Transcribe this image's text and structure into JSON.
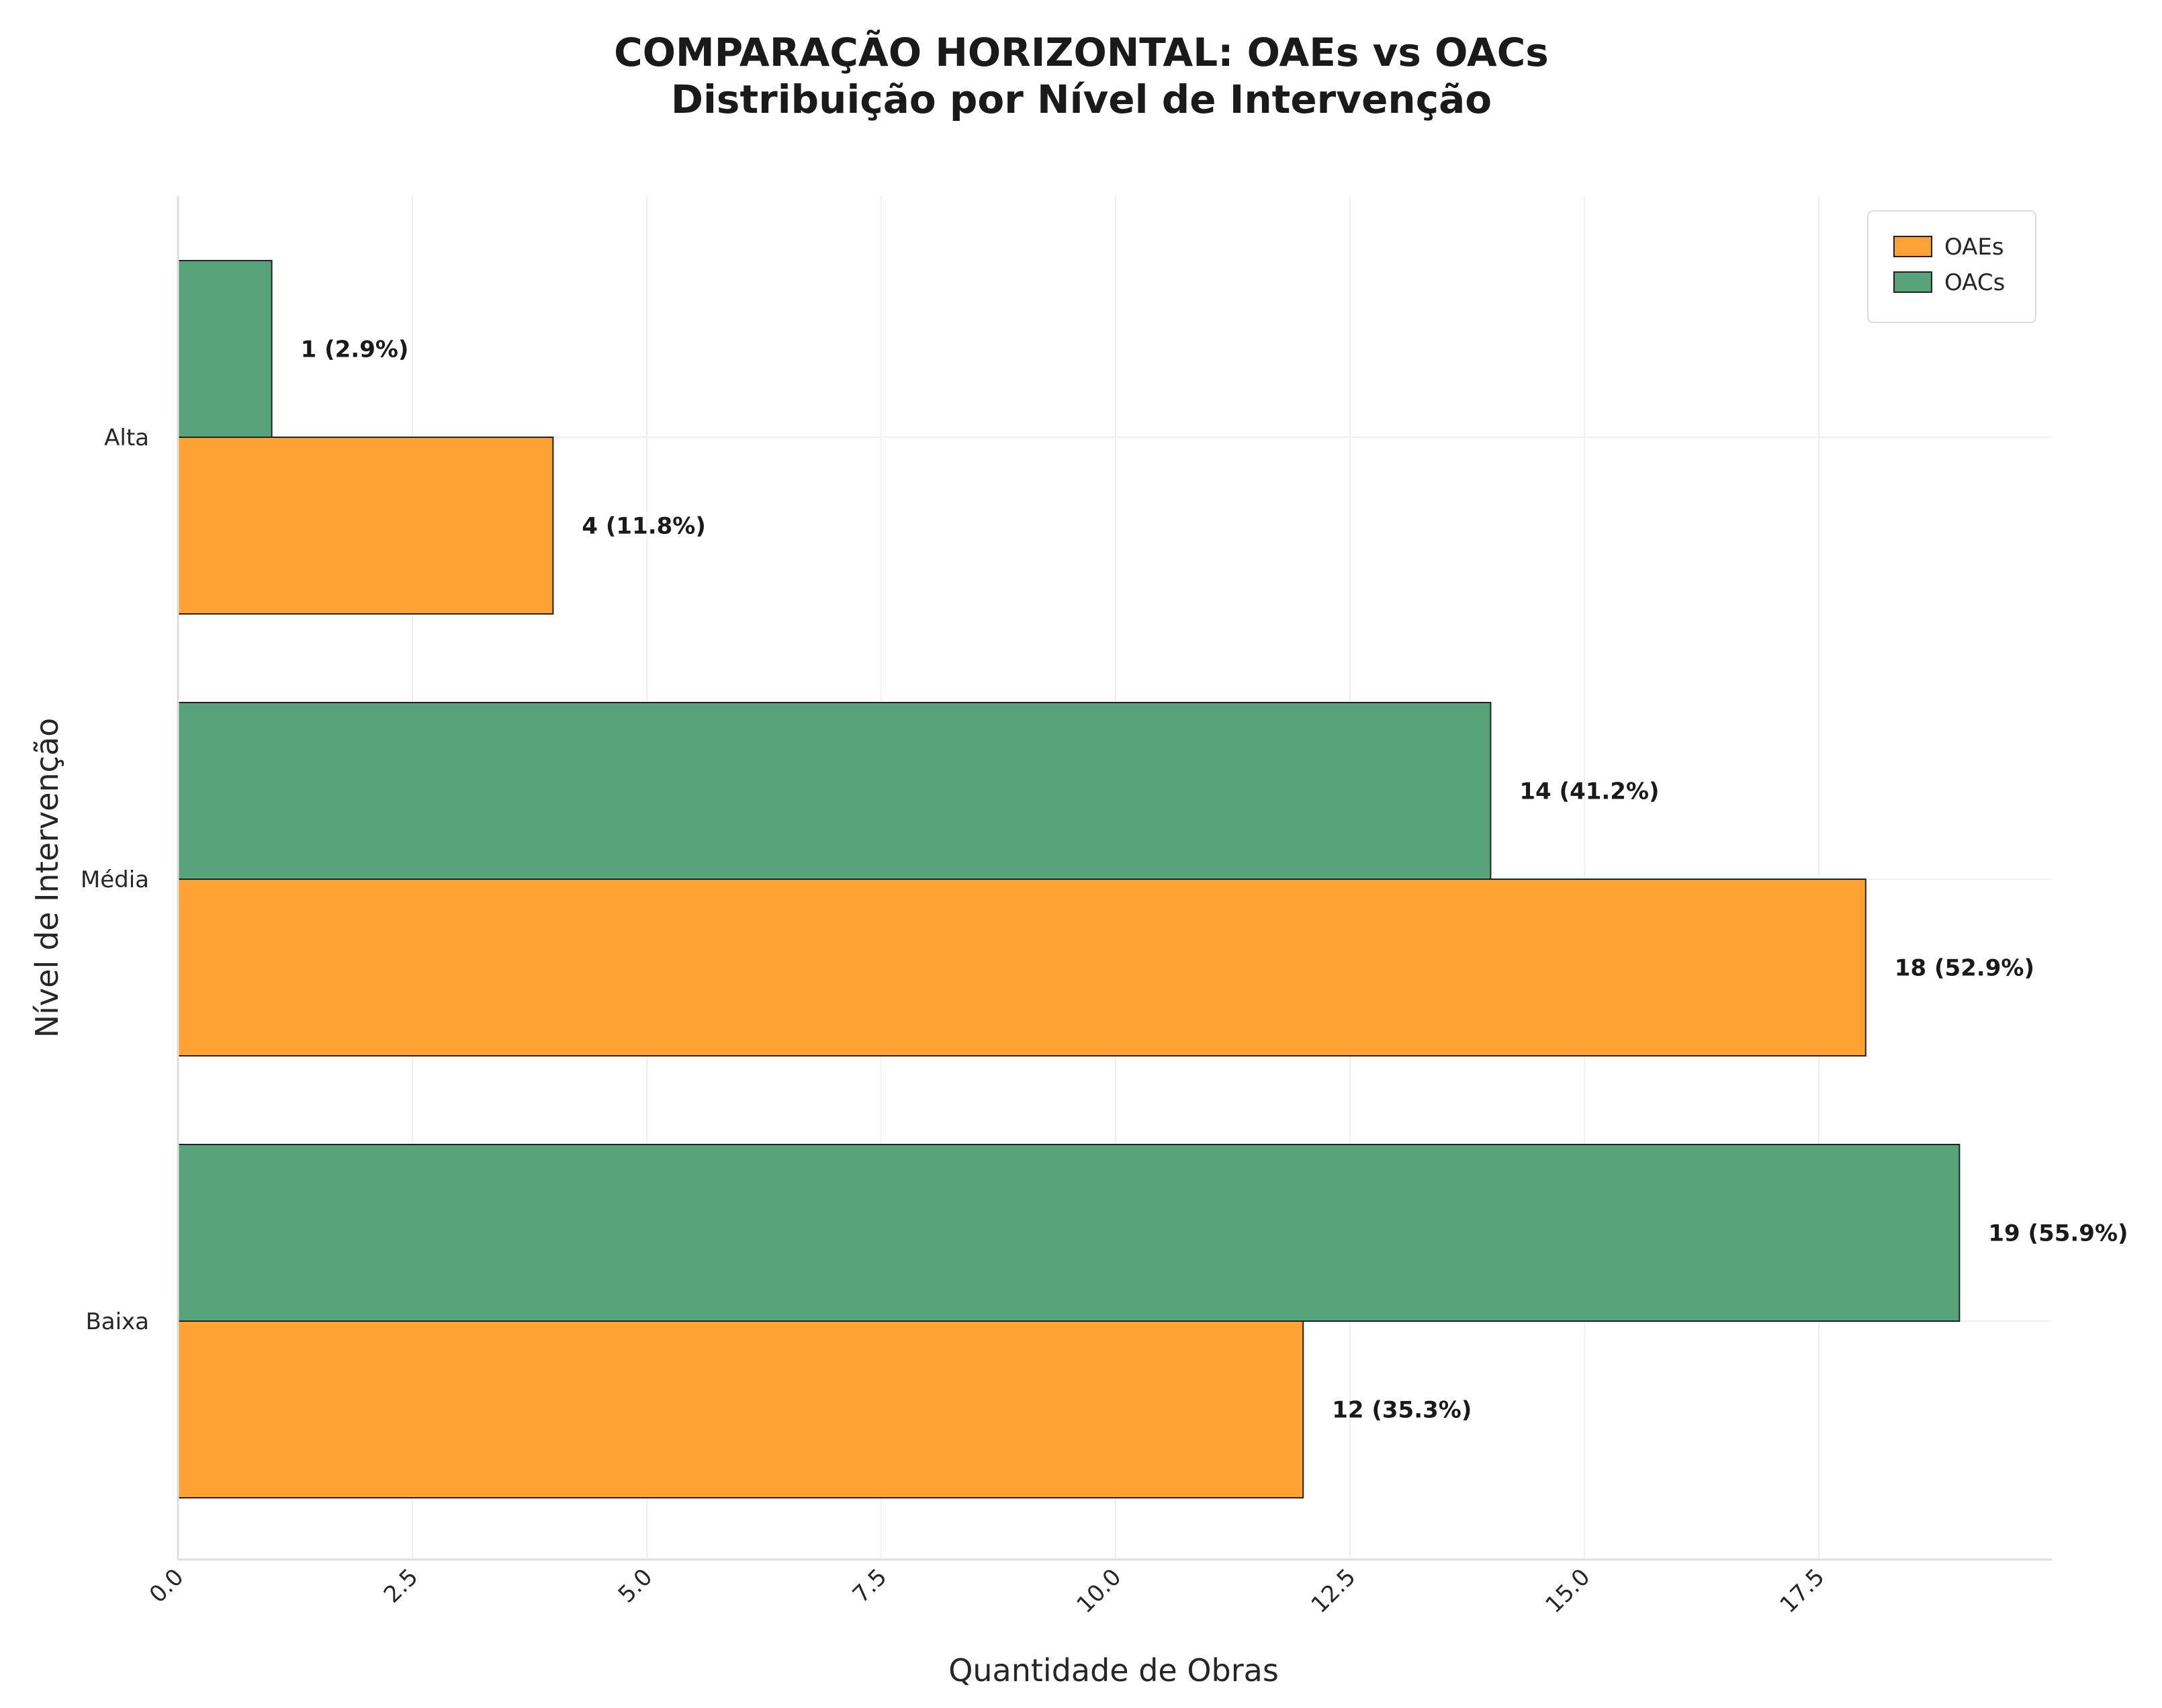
{
  "chart_data": {
    "type": "bar",
    "orientation": "horizontal",
    "title": "COMPARAÇÃO HORIZONTAL: OAEs vs OACs",
    "subtitle": "Distribuição por Nível de Intervenção",
    "xlabel": "Quantidade de Obras",
    "ylabel": "Nível de Intervenção",
    "categories": [
      "Alta",
      "Média",
      "Baixa"
    ],
    "series": [
      {
        "name": "OAEs",
        "color": "#ffa233",
        "values": [
          4,
          18,
          12
        ],
        "labels": [
          "4 (11.8%)",
          "18 (52.9%)",
          "12 (35.3%)"
        ]
      },
      {
        "name": "OACs",
        "color": "#58a379",
        "values": [
          1,
          14,
          19
        ],
        "labels": [
          "1 (2.9%)",
          "14 (41.2%)",
          "19 (55.9%)"
        ]
      }
    ],
    "xlim": [
      0,
      20
    ],
    "xticks": [
      "0.0",
      "2.5",
      "5.0",
      "7.5",
      "10.0",
      "12.5",
      "15.0",
      "17.5"
    ],
    "grid": true,
    "legend": {
      "position": "top-right",
      "entries": [
        "OAEs",
        "OACs"
      ]
    }
  }
}
